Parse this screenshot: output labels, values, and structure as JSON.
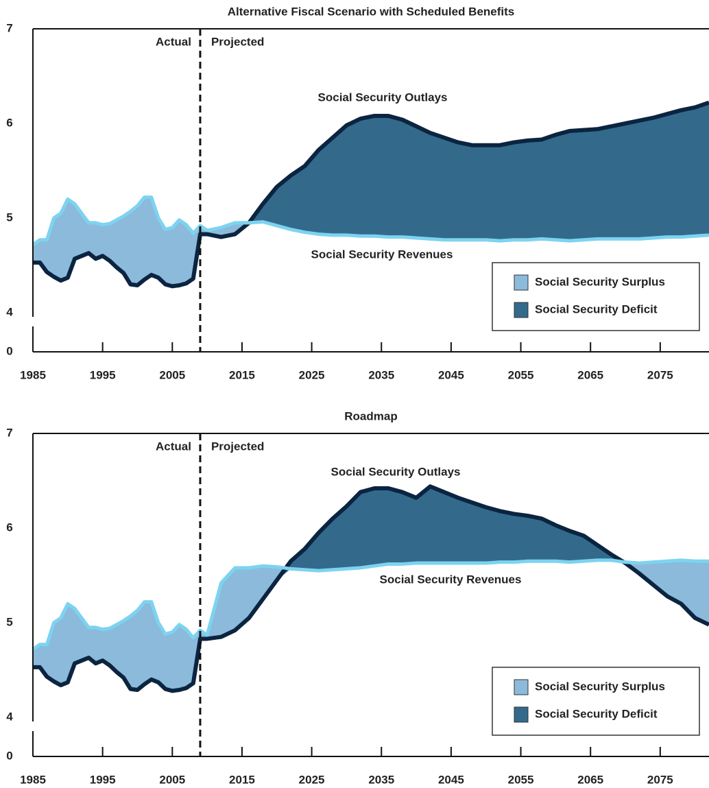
{
  "chart_data": [
    {
      "type": "line",
      "title": "Alternative Fiscal Scenario with Scheduled Benefits",
      "actual_label": "Actual",
      "projected_label": "Projected",
      "divider": 2009,
      "x": [
        1985,
        1986,
        1987,
        1988,
        1989,
        1990,
        1991,
        1992,
        1993,
        1994,
        1995,
        1996,
        1997,
        1998,
        1999,
        2000,
        2001,
        2002,
        2003,
        2004,
        2005,
        2006,
        2007,
        2008,
        2009,
        2010,
        2012,
        2014,
        2016,
        2018,
        2020,
        2022,
        2024,
        2026,
        2028,
        2030,
        2032,
        2034,
        2036,
        2038,
        2040,
        2042,
        2044,
        2046,
        2048,
        2050,
        2052,
        2054,
        2056,
        2058,
        2060,
        2062,
        2064,
        2066,
        2068,
        2070,
        2072,
        2074,
        2076,
        2078,
        2080,
        2082
      ],
      "series": [
        {
          "name": "Social Security Outlays",
          "color": "#0b2440",
          "values": [
            4.53,
            4.53,
            4.43,
            4.38,
            4.34,
            4.37,
            4.57,
            4.6,
            4.63,
            4.57,
            4.6,
            4.55,
            4.48,
            4.42,
            4.3,
            4.29,
            4.35,
            4.4,
            4.37,
            4.3,
            4.28,
            4.29,
            4.31,
            4.36,
            4.83,
            4.83,
            4.8,
            4.83,
            4.95,
            5.15,
            5.33,
            5.45,
            5.55,
            5.72,
            5.85,
            5.98,
            6.05,
            6.08,
            6.08,
            6.04,
            5.97,
            5.9,
            5.85,
            5.8,
            5.77,
            5.77,
            5.77,
            5.8,
            5.82,
            5.83,
            5.88,
            5.92,
            5.93,
            5.94,
            5.97,
            6.0,
            6.03,
            6.06,
            6.1,
            6.14,
            6.17,
            6.22
          ]
        },
        {
          "name": "Social Security Revenues",
          "color": "#7dd3f0",
          "values": [
            4.72,
            4.77,
            4.77,
            5.0,
            5.05,
            5.2,
            5.15,
            5.05,
            4.95,
            4.95,
            4.93,
            4.94,
            4.98,
            5.02,
            5.07,
            5.13,
            5.22,
            5.22,
            5.0,
            4.88,
            4.9,
            4.98,
            4.93,
            4.84,
            4.92,
            4.87,
            4.9,
            4.95,
            4.95,
            4.96,
            4.92,
            4.88,
            4.85,
            4.83,
            4.82,
            4.82,
            4.81,
            4.81,
            4.8,
            4.8,
            4.79,
            4.78,
            4.77,
            4.77,
            4.77,
            4.77,
            4.76,
            4.77,
            4.77,
            4.78,
            4.77,
            4.76,
            4.77,
            4.78,
            4.78,
            4.78,
            4.78,
            4.79,
            4.8,
            4.8,
            4.81,
            4.82
          ]
        }
      ],
      "legend": [
        {
          "label": "Social Security Surplus",
          "color": "#8cbadb"
        },
        {
          "label": "Social Security Deficit",
          "color": "#336a8c"
        }
      ],
      "legend_position": "lower right",
      "xlim": [
        1985,
        2082
      ],
      "xticks": [
        1985,
        1995,
        2005,
        2015,
        2025,
        2035,
        2045,
        2055,
        2065,
        2075
      ],
      "ylim": [
        0,
        7
      ],
      "yticks": [
        0,
        4,
        5,
        6,
        7
      ],
      "axis_break": true,
      "grid": false
    },
    {
      "type": "line",
      "title": "Roadmap",
      "actual_label": "Actual",
      "projected_label": "Projected",
      "divider": 2009,
      "x": [
        1985,
        1986,
        1987,
        1988,
        1989,
        1990,
        1991,
        1992,
        1993,
        1994,
        1995,
        1996,
        1997,
        1998,
        1999,
        2000,
        2001,
        2002,
        2003,
        2004,
        2005,
        2006,
        2007,
        2008,
        2009,
        2010,
        2012,
        2014,
        2016,
        2018,
        2020,
        2022,
        2024,
        2026,
        2028,
        2030,
        2032,
        2034,
        2036,
        2038,
        2040,
        2042,
        2044,
        2046,
        2048,
        2050,
        2052,
        2054,
        2056,
        2058,
        2060,
        2062,
        2064,
        2066,
        2068,
        2070,
        2072,
        2074,
        2076,
        2078,
        2080,
        2082
      ],
      "series": [
        {
          "name": "Social Security Outlays",
          "color": "#0b2440",
          "values": [
            4.53,
            4.53,
            4.43,
            4.38,
            4.34,
            4.37,
            4.57,
            4.6,
            4.63,
            4.57,
            4.6,
            4.55,
            4.48,
            4.42,
            4.3,
            4.29,
            4.35,
            4.4,
            4.37,
            4.3,
            4.28,
            4.29,
            4.31,
            4.36,
            4.83,
            4.83,
            4.85,
            4.92,
            5.05,
            5.25,
            5.45,
            5.65,
            5.78,
            5.95,
            6.1,
            6.23,
            6.38,
            6.42,
            6.42,
            6.38,
            6.32,
            6.44,
            6.38,
            6.32,
            6.27,
            6.22,
            6.18,
            6.15,
            6.13,
            6.1,
            6.03,
            5.97,
            5.92,
            5.82,
            5.72,
            5.63,
            5.52,
            5.4,
            5.28,
            5.2,
            5.05,
            4.98
          ]
        },
        {
          "name": "Social Security Revenues",
          "color": "#7dd3f0",
          "values": [
            4.72,
            4.77,
            4.77,
            5.0,
            5.05,
            5.2,
            5.15,
            5.05,
            4.95,
            4.95,
            4.93,
            4.94,
            4.98,
            5.02,
            5.07,
            5.13,
            5.22,
            5.22,
            5.0,
            4.88,
            4.9,
            4.98,
            4.93,
            4.84,
            4.92,
            4.87,
            5.42,
            5.58,
            5.58,
            5.6,
            5.59,
            5.57,
            5.56,
            5.55,
            5.56,
            5.57,
            5.58,
            5.6,
            5.62,
            5.62,
            5.63,
            5.63,
            5.63,
            5.63,
            5.63,
            5.63,
            5.64,
            5.64,
            5.65,
            5.65,
            5.65,
            5.64,
            5.65,
            5.66,
            5.66,
            5.64,
            5.63,
            5.64,
            5.65,
            5.66,
            5.65,
            5.65
          ]
        }
      ],
      "legend": [
        {
          "label": "Social Security Surplus",
          "color": "#8cbadb"
        },
        {
          "label": "Social Security Deficit",
          "color": "#336a8c"
        }
      ],
      "legend_position": "lower right",
      "xlim": [
        1985,
        2082
      ],
      "xticks": [
        1985,
        1995,
        2005,
        2015,
        2025,
        2035,
        2045,
        2055,
        2065,
        2075
      ],
      "ylim": [
        0,
        7
      ],
      "yticks": [
        0,
        4,
        5,
        6,
        7
      ],
      "axis_break": true,
      "grid": false
    }
  ]
}
